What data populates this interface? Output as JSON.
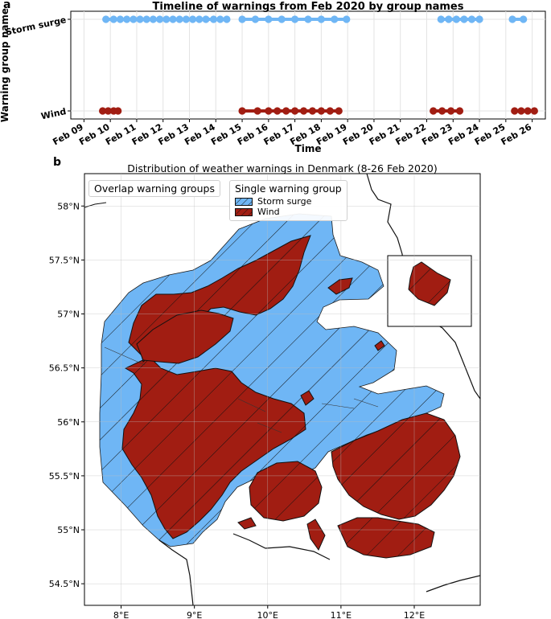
{
  "panel_a": {
    "letter": "a",
    "chart_data": {
      "type": "scatter",
      "title": "Timeline of warnings from Feb 2020 by group names",
      "xlabel": "Time",
      "ylabel": "Warning group name",
      "categories": [
        "Wind",
        "Storm surge"
      ],
      "xlim": [
        "2020-02-08T12:00",
        "2020-02-26T12:00"
      ],
      "x_ticks": [
        "Feb 09",
        "Feb 10",
        "Feb 11",
        "Feb 12",
        "Feb 13",
        "Feb 14",
        "Feb 15",
        "Feb 16",
        "Feb 17",
        "Feb 18",
        "Feb 19",
        "Feb 20",
        "Feb 21",
        "Feb 22",
        "Feb 23",
        "Feb 24",
        "Feb 25",
        "Feb 26"
      ],
      "grid": true,
      "series": [
        {
          "name": "Storm surge",
          "color": "#6fb6f5",
          "x": [
            "2020-02-09T20:00",
            "2020-02-10T03:00",
            "2020-02-10T09:00",
            "2020-02-10T15:00",
            "2020-02-10T21:00",
            "2020-02-11T03:00",
            "2020-02-11T09:00",
            "2020-02-11T15:00",
            "2020-02-11T21:00",
            "2020-02-12T03:00",
            "2020-02-12T09:00",
            "2020-02-12T15:00",
            "2020-02-12T21:00",
            "2020-02-13T03:00",
            "2020-02-13T09:00",
            "2020-02-13T15:00",
            "2020-02-13T22:00",
            "2020-02-14T04:00",
            "2020-02-14T10:00",
            "2020-02-15T00:00",
            "2020-02-15T12:00",
            "2020-02-16T00:00",
            "2020-02-16T12:00",
            "2020-02-17T00:00",
            "2020-02-17T12:00",
            "2020-02-18T00:00",
            "2020-02-18T12:00",
            "2020-02-18T23:00",
            "2020-02-22T13:00",
            "2020-02-22T20:00",
            "2020-02-23T03:00",
            "2020-02-23T10:00",
            "2020-02-23T17:00",
            "2020-02-24T00:00",
            "2020-02-25T06:00",
            "2020-02-25T16:00"
          ],
          "segments": [
            [
              "2020-02-09T20:00",
              "2020-02-14T10:00"
            ],
            [
              "2020-02-15T00:00",
              "2020-02-18T23:00"
            ],
            [
              "2020-02-22T13:00",
              "2020-02-24T00:00"
            ],
            [
              "2020-02-25T06:00",
              "2020-02-25T16:00"
            ]
          ]
        },
        {
          "name": "Wind",
          "color": "#a11d12",
          "x": [
            "2020-02-09T17:00",
            "2020-02-09T22:00",
            "2020-02-10T03:00",
            "2020-02-10T07:00",
            "2020-02-15T00:00",
            "2020-02-15T14:00",
            "2020-02-16T00:00",
            "2020-02-16T08:00",
            "2020-02-16T16:00",
            "2020-02-17T00:00",
            "2020-02-17T08:00",
            "2020-02-17T16:00",
            "2020-02-18T00:00",
            "2020-02-18T08:00",
            "2020-02-18T16:00",
            "2020-02-22T06:00",
            "2020-02-22T14:00",
            "2020-02-22T22:00",
            "2020-02-23T06:00",
            "2020-02-25T08:00",
            "2020-02-25T14:00",
            "2020-02-25T20:00",
            "2020-02-26T02:00"
          ],
          "segments": [
            [
              "2020-02-09T17:00",
              "2020-02-10T07:00"
            ],
            [
              "2020-02-15T00:00",
              "2020-02-18T16:00"
            ],
            [
              "2020-02-22T06:00",
              "2020-02-23T06:00"
            ],
            [
              "2020-02-25T08:00",
              "2020-02-26T02:00"
            ]
          ]
        }
      ]
    }
  },
  "panel_b": {
    "letter": "b",
    "title": "Distribution of weather warnings in Denmark (8-26 Feb 2020)",
    "overlap_legend_title": "Overlap warning groups",
    "single_legend_title": "Single warning group",
    "legend_items": [
      {
        "label": "Storm surge",
        "color": "#6fb6f5"
      },
      {
        "label": "Wind",
        "color": "#a11d12"
      }
    ],
    "lat_ticks": [
      "58°N",
      "57.5°N",
      "57°N",
      "56.5°N",
      "56°N",
      "55.5°N",
      "55°N",
      "54.5°N"
    ],
    "lon_ticks": [
      "8°E",
      "9°E",
      "10°E",
      "11°E",
      "12°E"
    ],
    "lat_range": [
      54.3,
      58.3
    ],
    "lon_range": [
      7.5,
      12.9
    ]
  }
}
